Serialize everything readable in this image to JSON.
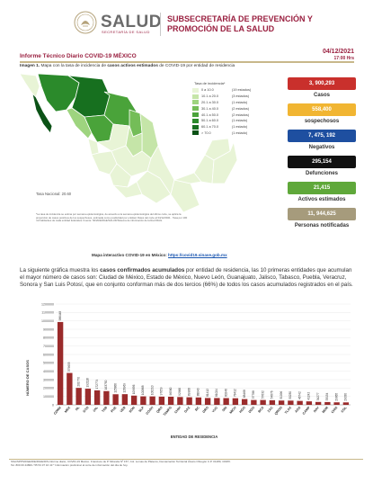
{
  "header": {
    "brand": "SALUD",
    "brand_sub": "SECRETARÍA DE SALUD",
    "subsecretaria": "SUBSECRETARÍA DE PREVENCIÓN Y PROMOCIÓN DE LA SALUD",
    "date": "04/12/2021",
    "time": "17:00 Hrs",
    "report_title": "Informe Técnico Diario COVID-19 MÉXICO"
  },
  "map": {
    "caption_prefix": "Imagen 1.",
    "caption_text": " Mapa con la tasa de incidencia de ",
    "caption_bold": "casos activos estimados",
    "caption_suffix": " de COVID-19 por entidad de residencia",
    "legend_title": "Tasa de incidencia*",
    "legend": [
      {
        "range": "0 a 10.0",
        "count": "(19 estados)",
        "color": "#e8f4d6"
      },
      {
        "range": "10.1 a 20.0",
        "count": "(3 estados)",
        "color": "#c5e5a8"
      },
      {
        "range": "20.1 a 30.0",
        "count": "(1 estado)",
        "color": "#9ed47f"
      },
      {
        "range": "30.1 a 40.0",
        "count": "(2 estados)",
        "color": "#74bd58"
      },
      {
        "range": "40.1 a 50.0",
        "count": "(2 estados)",
        "color": "#4aa33a"
      },
      {
        "range": "50.1 a 60.0",
        "count": "(1 estado)",
        "color": "#2b8a2b"
      },
      {
        "range": "60.1 a 70.0",
        "count": "(1 estado)",
        "color": "#17701f"
      },
      {
        "range": "> 70.0",
        "count": "(1 estado)",
        "color": "#0b5216"
      }
    ],
    "tasa_nacional": "Tasa Nacional: 20.60",
    "footnote": "*La tasa de incidencia se estima por semana epidemiológica, de acuerdo a la semana epidemiológica del último corte, se aplica la proporción de casos positivos de los sospechosos, estimada como positividad por entidad. Datos del corte al 04/12/2021 · Tasa por 100 mil habitantes de cada entidad federativa. Fuente: SINAVE/DGE/SALUD/Sistema de información de la Red IRAG.",
    "link_label": "Mapa interactivo COVID-19 en México: ",
    "link_url": "https://covid19.sinave.gob.mx"
  },
  "stats": [
    {
      "value": "3, 900,293",
      "label": "Casos",
      "color": "#c9302c"
    },
    {
      "value": "558,400",
      "label": "sospechosos",
      "color": "#f1b532"
    },
    {
      "value": "7, 475, 192",
      "label": "Negativos",
      "color": "#1e4fa0"
    },
    {
      "value": "295,154",
      "label": "Defunciones",
      "color": "#111111"
    },
    {
      "value": "21,415",
      "label": "Activos estimados",
      "color": "#5fa83a"
    },
    {
      "value": "11, 944,625",
      "label": "Personas notificadas",
      "color": "#a69b7c"
    }
  ],
  "paragraph": {
    "p1": "La siguiente gráfica muestra los ",
    "bold": "casos confirmados acumulados",
    "p2": " por entidad de residencia, las 10 primeras entidades que acumulan el mayor número de casos son: Ciudad de México, Estado de México, Nuevo León, Guanajuato, Jalisco, Tabasco, Puebla, Veracruz, Sonora y San Luis Potosí, que en conjunto conforman más de dos tercios (66%) de todos los casos acumulados registrados en el país."
  },
  "chart_data": {
    "type": "bar",
    "xlabel": "ENTIDAD DE RESIDENCIA",
    "ylabel": "NÚMERO DE CASOS",
    "ylim": [
      0,
      1200000
    ],
    "yticks": [
      "0",
      "100000",
      "200000",
      "300000",
      "400000",
      "500000",
      "600000",
      "700000",
      "800000",
      "900000",
      "1000000",
      "1100000",
      "1200000"
    ],
    "color": "#9a2b2b",
    "categories": [
      "CDMX",
      "MEX",
      "NL",
      "GTO",
      "JAL",
      "TAB",
      "PUE",
      "VER",
      "SON",
      "SLP",
      "COAH",
      "QRO",
      "TAMPS",
      "CHIH",
      "OAX",
      "BC",
      "GRO",
      "YUC",
      "SIN",
      "MICH",
      "HGO",
      "DGO",
      "BCS",
      "ZAC",
      "QROO",
      "TLAX",
      "AGS",
      "CAMP",
      "NAY",
      "MOR",
      "CHIS",
      "COL"
    ],
    "values": [
      986448,
      379655,
      201770,
      192118,
      172774,
      163750,
      125866,
      126969,
      109856,
      100868,
      100210,
      97659,
      96580,
      92966,
      89968,
      88040,
      81412,
      81024,
      80246,
      78412,
      68468,
      57788,
      57632,
      54876,
      51096,
      50230,
      46742,
      41242,
      34277,
      33154,
      29865,
      29030
    ],
    "value_labels": [
      "986448",
      "379655",
      "201770",
      "192118",
      "172774",
      "163750",
      "125866",
      "126969",
      "109856",
      "100868",
      "100210",
      "97659",
      "96580",
      "92966",
      "89968",
      "88040",
      "81412",
      "81024",
      "80246",
      "78412",
      "68468",
      "57788",
      "57632",
      "54876",
      "51096",
      "50230",
      "46742",
      "41242",
      "34277",
      "33154",
      "29865",
      "29030"
    ]
  },
  "footer": {
    "line1": "SSA/SPPS/DGE/DIE/DGIE/DIS-Informe diario, COVID-19 México. Francisco de P. Miranda Nº 157, Col. Lomas de Plateros, Demarcación Territorial Álvaro Obregón C.P. 01480, CDMX.",
    "line2": "Tel. 800 00 44800 / 55 53 37 16 43 * Información preliminar al corte de información del día de hoy."
  }
}
